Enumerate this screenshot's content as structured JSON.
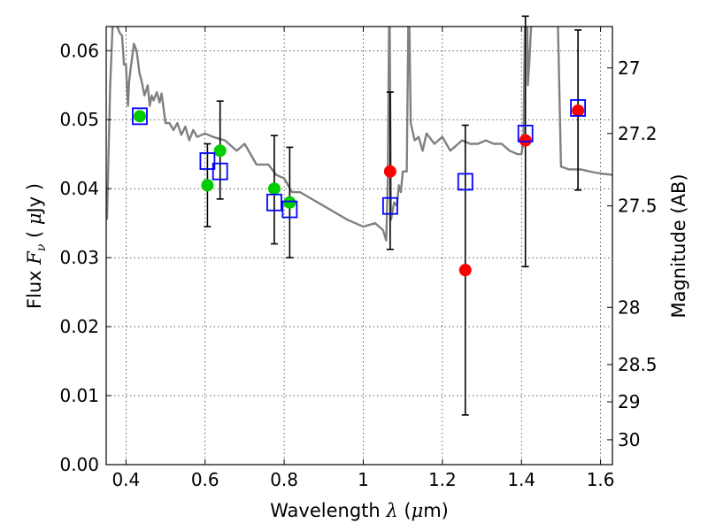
{
  "chart_data": {
    "type": "scatter",
    "xlabel": "Wavelength  λ (μm)",
    "ylabel": "Flux  F_ν  ( μJy )",
    "ylabel_parts": {
      "pre": "Flux ",
      "sym": "F",
      "sub": "ν",
      "paren_open": " ( ",
      "mu": "μ",
      "unit": "Jy",
      "paren_close": " )"
    },
    "xlabel_parts": {
      "text": "Wavelength ",
      "sym": "λ",
      "paren_open": " (",
      "mu": "μ",
      "unit": "m)"
    },
    "y2label": "Magnitude (AB)",
    "xlim": [
      0.35,
      1.63
    ],
    "ylim": [
      0.0,
      0.0635
    ],
    "xticks": [
      0.4,
      0.6,
      0.8,
      1.0,
      1.2,
      1.4,
      1.6
    ],
    "xtick_labels": [
      "0.4",
      "0.6",
      "0.8",
      "1",
      "1.2",
      "1.4",
      "1.6"
    ],
    "yticks": [
      0.0,
      0.01,
      0.02,
      0.03,
      0.04,
      0.05,
      0.06
    ],
    "ytick_labels": [
      "0.00",
      "0.01",
      "0.02",
      "0.03",
      "0.04",
      "0.05",
      "0.06"
    ],
    "y2_ticks": [
      {
        "flux": 0.0575,
        "label": "27"
      },
      {
        "flux": 0.048,
        "label": "27.2"
      },
      {
        "flux": 0.0375,
        "label": "27.5"
      },
      {
        "flux": 0.0228,
        "label": "28"
      },
      {
        "flux": 0.0145,
        "label": "28.5"
      },
      {
        "flux": 0.0091,
        "label": "29"
      },
      {
        "flux": 0.0036,
        "label": "30"
      }
    ],
    "grid": true,
    "colors": {
      "template": "#808080",
      "model": "#0000ff",
      "optical": "#00cc00",
      "infrared": "#ff0000",
      "errorbar": "#000000"
    },
    "series": [
      {
        "marker": "open-square",
        "color": "#0000ff",
        "x": [
          0.435,
          0.606,
          0.638,
          0.775,
          0.814,
          1.068,
          1.258,
          1.41,
          1.543
        ],
        "y": [
          0.0505,
          0.044,
          0.0425,
          0.038,
          0.037,
          0.0375,
          0.041,
          0.048,
          0.0517
        ]
      },
      {
        "marker": "filled-circle",
        "color": "#00cc00",
        "x": [
          0.435,
          0.606,
          0.638,
          0.775,
          0.814
        ],
        "y": [
          0.0505,
          0.0405,
          0.0455,
          0.04,
          0.038
        ],
        "yerr_low": [
          null,
          0.006,
          0.007,
          0.008,
          0.008
        ],
        "yerr_high": [
          null,
          0.006,
          0.0072,
          0.0077,
          0.008
        ]
      },
      {
        "marker": "filled-circle",
        "color": "#ff0000",
        "x": [
          1.068,
          1.258,
          1.41,
          1.543
        ],
        "y": [
          0.0425,
          0.0282,
          0.047,
          0.0513
        ],
        "yerr_low": [
          0.0113,
          0.021,
          0.0183,
          0.0115
        ],
        "yerr_high": [
          0.0115,
          0.021,
          0.018,
          0.0117
        ]
      },
      {
        "style": "line",
        "color": "#808080",
        "x": [
          0.352,
          0.36,
          0.368,
          0.374,
          0.378,
          0.385,
          0.39,
          0.395,
          0.4,
          0.405,
          0.408,
          0.412,
          0.42,
          0.427,
          0.434,
          0.44,
          0.447,
          0.455,
          0.46,
          0.465,
          0.47,
          0.478,
          0.485,
          0.49,
          0.5,
          0.51,
          0.52,
          0.53,
          0.54,
          0.55,
          0.56,
          0.57,
          0.58,
          0.6,
          0.62,
          0.65,
          0.68,
          0.7,
          0.73,
          0.76,
          0.78,
          0.8,
          0.82,
          0.84,
          0.87,
          0.9,
          0.93,
          0.96,
          1.0,
          1.03,
          1.05,
          1.058,
          1.062,
          1.066,
          1.07,
          1.078,
          1.085,
          1.09,
          1.095,
          1.1,
          1.11,
          1.115,
          1.12,
          1.13,
          1.14,
          1.15,
          1.16,
          1.18,
          1.2,
          1.22,
          1.25,
          1.27,
          1.29,
          1.31,
          1.33,
          1.35,
          1.37,
          1.39,
          1.4,
          1.405,
          1.41,
          1.414,
          1.416,
          1.42,
          1.43,
          1.44,
          1.45,
          1.46,
          1.47,
          1.48,
          1.49,
          1.5,
          1.52,
          1.55,
          1.58,
          1.6,
          1.63
        ],
        "y": [
          0.0355,
          0.055,
          0.066,
          0.066,
          0.0635,
          0.0625,
          0.0622,
          0.058,
          0.058,
          0.052,
          0.0555,
          0.0575,
          0.061,
          0.06,
          0.0568,
          0.0555,
          0.0535,
          0.055,
          0.052,
          0.0535,
          0.0528,
          0.054,
          0.0525,
          0.0538,
          0.0495,
          0.0495,
          0.0485,
          0.0495,
          0.0478,
          0.049,
          0.047,
          0.0485,
          0.0475,
          0.048,
          0.0475,
          0.047,
          0.0455,
          0.0465,
          0.0435,
          0.0435,
          0.042,
          0.0415,
          0.0395,
          0.0395,
          0.0385,
          0.0375,
          0.0365,
          0.0355,
          0.0345,
          0.035,
          0.034,
          0.0325,
          0.041,
          0.07,
          0.0355,
          0.038,
          0.0375,
          0.0405,
          0.0395,
          0.0425,
          0.0425,
          0.07,
          0.0495,
          0.047,
          0.0475,
          0.0455,
          0.048,
          0.0465,
          0.0475,
          0.0455,
          0.047,
          0.0465,
          0.0465,
          0.047,
          0.0465,
          0.0465,
          0.0455,
          0.045,
          0.045,
          0.0468,
          0.07,
          0.07,
          0.055,
          0.0585,
          0.07,
          0.07,
          0.07,
          0.07,
          0.07,
          0.07,
          0.07,
          0.0432,
          0.0428,
          0.0428,
          0.0424,
          0.0422,
          0.042
        ]
      }
    ]
  }
}
